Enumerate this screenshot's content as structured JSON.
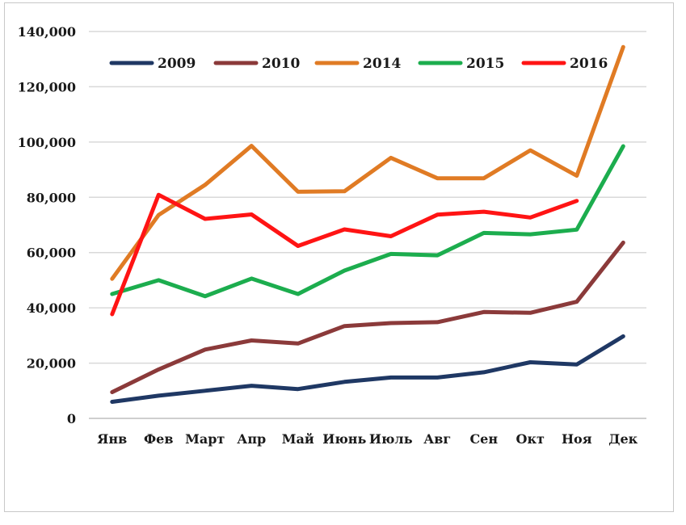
{
  "chart_data": {
    "type": "line",
    "categories": [
      "Янв",
      "Фев",
      "Март",
      "Апр",
      "Май",
      "Июнь",
      "Июль",
      "Авг",
      "Сен",
      "Окт",
      "Ноя",
      "Дек"
    ],
    "ylim": [
      0,
      140000
    ],
    "yticks": [
      0,
      20000,
      40000,
      60000,
      80000,
      100000,
      120000,
      140000
    ],
    "ytick_labels": [
      "0",
      "20,000",
      "40,000",
      "60,000",
      "80,000",
      "100,000",
      "120,000",
      "140,000"
    ],
    "grid": "horizontal",
    "legend": "top",
    "series": [
      {
        "name": "2009",
        "color": "#1f3864",
        "values": [
          6000,
          8200,
          10000,
          11800,
          10600,
          13200,
          14800,
          14800,
          16700,
          20300,
          19500,
          29700
        ]
      },
      {
        "name": "2010",
        "color": "#8b3a3a",
        "values": [
          9500,
          17700,
          24900,
          28200,
          27100,
          33400,
          34500,
          34800,
          38500,
          38200,
          42200,
          63600
        ]
      },
      {
        "name": "2014",
        "color": "#e07b24",
        "values": [
          50500,
          73600,
          84500,
          98600,
          82000,
          82200,
          94300,
          86900,
          86900,
          97000,
          87800,
          134400
        ]
      },
      {
        "name": "2015",
        "color": "#1cad4e",
        "values": [
          45000,
          50000,
          44200,
          50600,
          45000,
          53500,
          59500,
          59000,
          67100,
          66600,
          68300,
          98500
        ]
      },
      {
        "name": "2016",
        "color": "#ff1414",
        "values": [
          37700,
          80900,
          72200,
          73800,
          62400,
          68400,
          65900,
          73700,
          74800,
          72700,
          78700,
          null
        ]
      }
    ]
  }
}
